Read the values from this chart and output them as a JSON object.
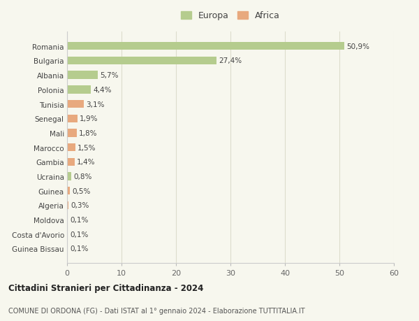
{
  "categories": [
    "Guinea Bissau",
    "Costa d'Avorio",
    "Moldova",
    "Algeria",
    "Guinea",
    "Ucraina",
    "Gambia",
    "Marocco",
    "Mali",
    "Senegal",
    "Tunisia",
    "Polonia",
    "Albania",
    "Bulgaria",
    "Romania"
  ],
  "values": [
    0.1,
    0.1,
    0.1,
    0.3,
    0.5,
    0.8,
    1.4,
    1.5,
    1.8,
    1.9,
    3.1,
    4.4,
    5.7,
    27.4,
    50.9
  ],
  "labels": [
    "0,1%",
    "0,1%",
    "0,1%",
    "0,3%",
    "0,5%",
    "0,8%",
    "1,4%",
    "1,5%",
    "1,8%",
    "1,9%",
    "3,1%",
    "4,4%",
    "5,7%",
    "27,4%",
    "50,9%"
  ],
  "continents": [
    "Africa",
    "Africa",
    "Europa",
    "Africa",
    "Africa",
    "Europa",
    "Africa",
    "Africa",
    "Africa",
    "Africa",
    "Africa",
    "Europa",
    "Europa",
    "Europa",
    "Europa"
  ],
  "color_europa": "#b5cc8e",
  "color_africa": "#e8a97e",
  "background_color": "#f7f7ee",
  "grid_color": "#ddddcc",
  "title": "Cittadini Stranieri per Cittadinanza - 2024",
  "subtitle": "COMUNE DI ORDONA (FG) - Dati ISTAT al 1° gennaio 2024 - Elaborazione TUTTITALIA.IT",
  "xlim": [
    0,
    60
  ],
  "xticks": [
    0,
    10,
    20,
    30,
    40,
    50,
    60
  ],
  "legend_europa": "Europa",
  "legend_africa": "Africa"
}
